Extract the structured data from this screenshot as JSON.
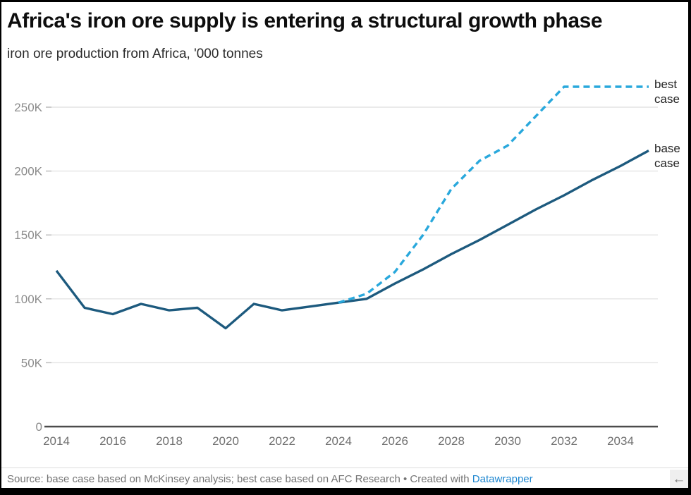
{
  "header": {
    "title": "Africa's iron ore supply is entering a structural growth phase",
    "subtitle": "iron ore production from Africa, '000 tonnes"
  },
  "footer": {
    "source_text": "Source: base case based on McKinsey analysis; best case based on AFC Research • Created with ",
    "link_label": "Datawrapper"
  },
  "scroll_corner": {
    "arrow": "←"
  },
  "chart_data": {
    "type": "line",
    "title": "Africa's iron ore supply is entering a structural growth phase",
    "subtitle": "iron ore production from Africa, '000 tonnes",
    "unit": "'000 tonnes (values in K, i.e. thousands of '000 tonnes)",
    "x": [
      2014,
      2015,
      2016,
      2017,
      2018,
      2019,
      2020,
      2021,
      2022,
      2023,
      2024,
      2025,
      2026,
      2027,
      2028,
      2029,
      2030,
      2031,
      2032,
      2033,
      2034,
      2035
    ],
    "series": [
      {
        "name": "base case",
        "style": "solid",
        "color": "#1d5a7e",
        "values": [
          122,
          93,
          88,
          96,
          91,
          93,
          77,
          96,
          91,
          94,
          97,
          100,
          112,
          123,
          135,
          146,
          158,
          170,
          181,
          193,
          204,
          216
        ]
      },
      {
        "name": "best case",
        "style": "dashed",
        "color": "#29a8dc",
        "values": [
          null,
          null,
          null,
          null,
          null,
          null,
          null,
          null,
          null,
          null,
          97,
          104,
          121,
          150,
          186,
          208,
          220,
          243,
          266,
          266,
          266,
          266
        ]
      }
    ],
    "x_ticks": [
      2014,
      2016,
      2018,
      2020,
      2022,
      2024,
      2026,
      2028,
      2030,
      2032,
      2034
    ],
    "y_ticks": [
      {
        "value": 0,
        "label": "0"
      },
      {
        "value": 50,
        "label": "50K"
      },
      {
        "value": 100,
        "label": "100K"
      },
      {
        "value": 150,
        "label": "150K"
      },
      {
        "value": 200,
        "label": "200K"
      },
      {
        "value": 250,
        "label": "250K"
      }
    ],
    "xlim": [
      2014,
      2035
    ],
    "ylim": [
      0,
      278
    ],
    "grid": "horizontal",
    "legend": "direct-labels-right",
    "colors": {
      "grid": "#e4e4e4",
      "grid_tick": "#bdbdbd",
      "axis": "#4c4c4c",
      "y_tick_label": "#8c8c8c",
      "x_tick_label": "#6f6f6f"
    }
  }
}
